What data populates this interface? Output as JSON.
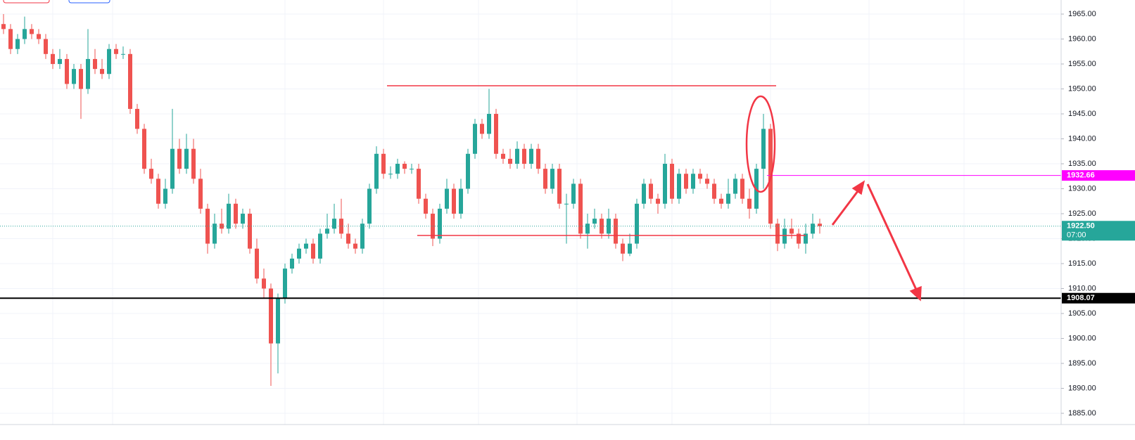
{
  "chart_data": {
    "type": "candlestick",
    "open": [
      1963,
      1962,
      1958,
      1960,
      1962,
      1961,
      1960,
      1957,
      1955,
      1956,
      1951,
      1954,
      1950,
      1956,
      1954,
      1953,
      1958,
      1957,
      1957,
      1946,
      1942,
      1934,
      1932,
      1927,
      1930,
      1938,
      1934,
      1938,
      1932,
      1926,
      1919,
      1923,
      1922,
      1927,
      1923,
      1925,
      1918,
      1912,
      1910,
      1899,
      1908,
      1914,
      1916,
      1918,
      1919,
      1916,
      1921,
      1922,
      1924,
      1921,
      1919,
      1918,
      1923,
      1930,
      1937,
      1933,
      1933,
      1935,
      1934,
      1934,
      1928,
      1925,
      1920,
      1926,
      1930,
      1925,
      1930,
      1937,
      1943,
      1941,
      1945,
      1937,
      1936,
      1935,
      1938,
      1935,
      1938,
      1934,
      1930,
      1934,
      1927,
      1927,
      1931,
      1921,
      1923,
      1924,
      1921,
      1924,
      1919,
      1917,
      1919,
      1927,
      1931,
      1928,
      1927,
      1935,
      1928,
      1933,
      1930,
      1933,
      1932,
      1931,
      1928,
      1927,
      1929,
      1932,
      1928,
      1926,
      1934,
      1942,
      1923,
      1919,
      1922,
      1921,
      1919,
      1921,
      1923
    ],
    "high": [
      1965,
      1963,
      1961,
      1964.5,
      1963,
      1962,
      1961,
      1958,
      1958,
      1957,
      1955,
      1955,
      1962,
      1958,
      1956,
      1959,
      1959,
      1958.5,
      1958,
      1947,
      1943,
      1936,
      1933,
      1932,
      1946,
      1940,
      1941,
      1940,
      1934,
      1927,
      1925,
      1926,
      1929,
      1928,
      1926,
      1926,
      1920,
      1914,
      1911,
      1909,
      1915,
      1917,
      1919,
      1920,
      1920,
      1922,
      1925,
      1927,
      1928,
      1923,
      1920,
      1924,
      1931,
      1938.5,
      1938,
      1934.5,
      1936,
      1935.5,
      1935,
      1935,
      1929,
      1926,
      1927,
      1932,
      1931,
      1932,
      1938,
      1944,
      1944,
      1950,
      1946,
      1938,
      1938,
      1939.5,
      1939,
      1939,
      1939,
      1935,
      1935,
      1935,
      1929,
      1932,
      1932,
      1925,
      1926,
      1925,
      1926,
      1925,
      1920,
      1921,
      1928,
      1932,
      1932,
      1929,
      1937,
      1936,
      1934,
      1934,
      1934,
      1934,
      1933,
      1932,
      1929,
      1932,
      1933,
      1933,
      1930,
      1935,
      1945,
      1943,
      1924,
      1924,
      1924,
      1922,
      1923,
      1925,
      1924
    ],
    "low": [
      1961,
      1957,
      1957,
      1959,
      1960,
      1959,
      1956,
      1954,
      1954,
      1950,
      1950,
      1944,
      1949,
      1953,
      1952,
      1952,
      1956,
      1956,
      1945,
      1941,
      1933,
      1931,
      1926,
      1926,
      1929,
      1933,
      1933,
      1931,
      1925,
      1917,
      1918,
      1921,
      1921,
      1922,
      1922,
      1917,
      1911,
      1908,
      1890.5,
      1893,
      1907,
      1913,
      1915,
      1917,
      1915,
      1915,
      1920,
      1921,
      1920,
      1918,
      1917,
      1917,
      1922,
      1929,
      1932,
      1932,
      1932,
      1933,
      1933,
      1927,
      1924,
      1918.5,
      1919,
      1925,
      1924,
      1924,
      1929,
      1936,
      1940,
      1940,
      1936,
      1935,
      1934,
      1934,
      1934,
      1934,
      1933,
      1929,
      1929,
      1926,
      1919,
      1926,
      1920,
      1918,
      1922,
      1920,
      1920,
      1918,
      1915.5,
      1916.5,
      1918,
      1926,
      1927,
      1925,
      1926,
      1927,
      1927,
      1929,
      1929,
      1931,
      1930,
      1927,
      1926,
      1926,
      1928,
      1927,
      1924,
      1925,
      1930,
      1922,
      1917.5,
      1918,
      1920,
      1918,
      1917,
      1920,
      1921
    ],
    "close": [
      1962,
      1958,
      1960,
      1962,
      1961,
      1960,
      1957,
      1955,
      1956,
      1951,
      1954,
      1950,
      1956,
      1954,
      1953,
      1958,
      1957,
      1957,
      1946,
      1942,
      1934,
      1932,
      1927,
      1930,
      1938,
      1934,
      1938,
      1932,
      1926,
      1919,
      1923,
      1922,
      1927,
      1923,
      1925,
      1918,
      1912,
      1910,
      1899,
      1908,
      1914,
      1916,
      1918,
      1919,
      1916,
      1921,
      1922,
      1924,
      1921,
      1919,
      1918,
      1923,
      1930,
      1937,
      1933,
      1933,
      1935,
      1934,
      1934,
      1928,
      1925,
      1920,
      1926,
      1930,
      1925,
      1930,
      1937,
      1943,
      1941,
      1945,
      1937,
      1936,
      1935,
      1938,
      1935,
      1938,
      1934,
      1930,
      1934,
      1927,
      1927,
      1931,
      1921,
      1923,
      1924,
      1921,
      1924,
      1919,
      1917,
      1919,
      1927,
      1931,
      1928,
      1927,
      1935,
      1928,
      1933,
      1930,
      1933,
      1932,
      1931,
      1928,
      1927,
      1929,
      1932,
      1928,
      1926,
      1934,
      1942,
      1923,
      1919,
      1922,
      1921,
      1919,
      1921,
      1923,
      1922.5
    ],
    "up_color": "#26a69a",
    "down_color": "#ef5350",
    "ylim": [
      1882.75,
      1967.82
    ],
    "yticks": [
      {
        "value": 1885,
        "label": "1885.00"
      },
      {
        "value": 1890,
        "label": "1890.00"
      },
      {
        "value": 1895,
        "label": "1895.00"
      },
      {
        "value": 1900,
        "label": "1900.00"
      },
      {
        "value": 1905,
        "label": "1905.00"
      },
      {
        "value": 1910,
        "label": "1910.00"
      },
      {
        "value": 1915,
        "label": "1915.00"
      },
      {
        "value": 1920,
        "label": "1920.00"
      },
      {
        "value": 1925,
        "label": "1925.00"
      },
      {
        "value": 1930,
        "label": "1930.00"
      },
      {
        "value": 1935,
        "label": "1935.00"
      },
      {
        "value": 1940,
        "label": "1940.00"
      },
      {
        "value": 1945,
        "label": "1945.00"
      },
      {
        "value": 1950,
        "label": "1950.00"
      },
      {
        "value": 1955,
        "label": "1955.00"
      },
      {
        "value": 1960,
        "label": "1960.00"
      },
      {
        "value": 1965,
        "label": "1965.00"
      }
    ],
    "grid": true,
    "price_lines": [
      {
        "value": 1932.66,
        "label": "1932.66",
        "color": "#ff00ff",
        "style": "solid"
      },
      {
        "value": 1922.5,
        "label": "1922.50",
        "countdown": "07:00",
        "color": "#26a69a",
        "style": "dotted"
      },
      {
        "value": 1908.07,
        "label": "1908.07",
        "color": "#000000",
        "style": "solid"
      }
    ]
  }
}
